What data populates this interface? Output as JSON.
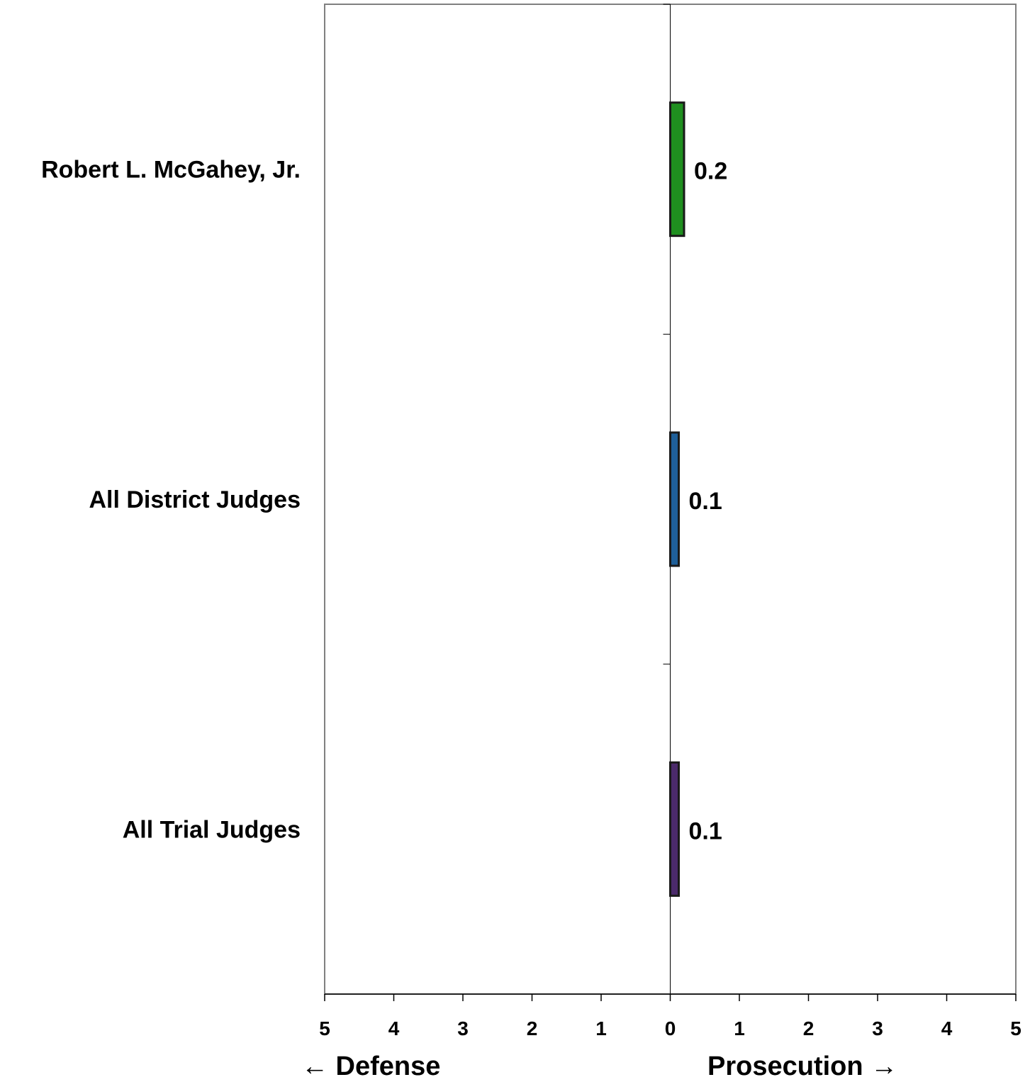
{
  "chart_data": {
    "type": "bar",
    "orientation": "horizontal",
    "categories": [
      "Robert L. McGahey, Jr.",
      "All District Judges",
      "All Trial Judges"
    ],
    "values": [
      0.2,
      0.1,
      0.1
    ],
    "value_labels": [
      "0.2",
      "0.1",
      "0.1"
    ],
    "colors": [
      "#1f8f1f",
      "#1f5f99",
      "#4b2a6b"
    ],
    "xlim": [
      -5,
      5
    ],
    "x_ticks": [
      -5,
      -4,
      -3,
      -2,
      -1,
      0,
      1,
      2,
      3,
      4,
      5
    ],
    "x_tick_labels": [
      "5",
      "4",
      "3",
      "2",
      "1",
      "0",
      "1",
      "2",
      "3",
      "4",
      "5"
    ],
    "xlabel_left": "← Defense",
    "xlabel_right": "Prosecution →",
    "grid": false,
    "legend": "none"
  }
}
